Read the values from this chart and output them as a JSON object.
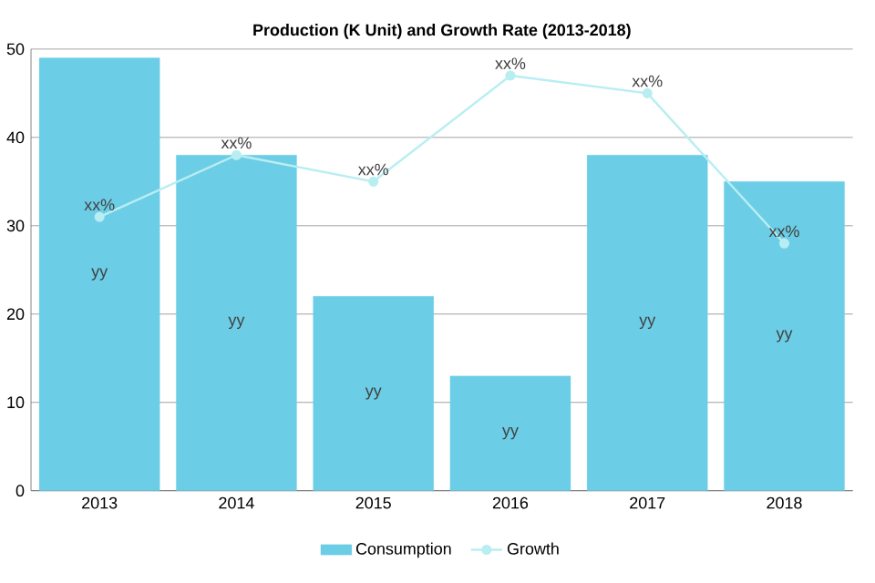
{
  "chart_data": {
    "type": "bar",
    "title": "Production (K Unit) and Growth Rate (2013-2018)",
    "categories": [
      "2013",
      "2014",
      "2015",
      "2016",
      "2017",
      "2018"
    ],
    "series": [
      {
        "name": "Consumption",
        "color": "#6ccde6",
        "values": [
          49,
          38,
          22,
          13,
          38,
          35
        ],
        "value_labels": [
          "yy",
          "yy",
          "yy",
          "yy",
          "yy",
          "yy"
        ]
      },
      {
        "name": "Growth",
        "type": "line",
        "color": "#b8eef2",
        "values": [
          31,
          38,
          35,
          47,
          45,
          28
        ],
        "value_labels": [
          "xx%",
          "xx%",
          "xx%",
          "xx%",
          "xx%",
          "xx%"
        ],
        "marker": "circle",
        "line_style": "solid"
      }
    ],
    "ylim": [
      0,
      50
    ],
    "yticks": [
      0,
      10,
      20,
      30,
      40,
      50
    ],
    "grid": "y",
    "legend": "bottom"
  }
}
